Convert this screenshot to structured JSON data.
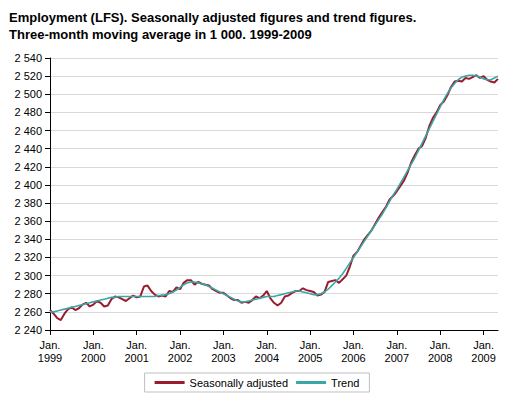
{
  "chart_data": {
    "type": "line",
    "title": "Employment (LFS). Seasonally adjusted figures and trend figures. Three-month moving average in 1 000. 1999-2009",
    "categories": [
      "Jan.\n1999",
      null,
      null,
      null,
      null,
      null,
      null,
      null,
      null,
      null,
      null,
      null,
      "Jan.\n2000",
      null,
      null,
      null,
      null,
      null,
      null,
      null,
      null,
      null,
      null,
      null,
      "Jan.\n2001",
      null,
      null,
      null,
      null,
      null,
      null,
      null,
      null,
      null,
      null,
      null,
      "Jan.\n2002",
      null,
      null,
      null,
      null,
      null,
      null,
      null,
      null,
      null,
      null,
      null,
      "Jan.\n2003",
      null,
      null,
      null,
      null,
      null,
      null,
      null,
      null,
      null,
      null,
      null,
      "Jan.\n2004",
      null,
      null,
      null,
      null,
      null,
      null,
      null,
      null,
      null,
      null,
      null,
      "Jan.\n2005",
      null,
      null,
      null,
      null,
      null,
      null,
      null,
      null,
      null,
      null,
      null,
      "Jan.\n2006",
      null,
      null,
      null,
      null,
      null,
      null,
      null,
      null,
      null,
      null,
      null,
      "Jan.\n2007",
      null,
      null,
      null,
      null,
      null,
      null,
      null,
      null,
      null,
      null,
      null,
      "Jan.\n2008",
      null,
      null,
      null,
      null,
      null,
      null,
      null,
      null,
      null,
      null,
      null,
      "Jan.\n2009",
      null,
      null,
      null,
      null
    ],
    "series": [
      {
        "name": "Seasonally adjusted",
        "color": "#9b1c2e",
        "values": [
          2262,
          2258,
          2253,
          2251,
          2258,
          2263,
          2265,
          2262,
          2264,
          2268,
          2270,
          2266,
          2268,
          2272,
          2270,
          2266,
          2267,
          2274,
          2277,
          2276,
          2274,
          2272,
          2275,
          2278,
          2276,
          2277,
          2288,
          2289,
          2283,
          2279,
          2277,
          2278,
          2277,
          2283,
          2282,
          2287,
          2285,
          2292,
          2295,
          2295,
          2290,
          2293,
          2291,
          2290,
          2289,
          2285,
          2283,
          2281,
          2281,
          2278,
          2275,
          2273,
          2273,
          2270,
          2271,
          2270,
          2273,
          2277,
          2275,
          2278,
          2283,
          2275,
          2270,
          2267,
          2270,
          2277,
          2278,
          2281,
          2283,
          2283,
          2286,
          2284,
          2283,
          2282,
          2278,
          2279,
          2282,
          2293,
          2294,
          2295,
          2292,
          2296,
          2300,
          2310,
          2322,
          2326,
          2333,
          2340,
          2345,
          2350,
          2357,
          2364,
          2370,
          2376,
          2384,
          2388,
          2393,
          2399,
          2405,
          2414,
          2425,
          2433,
          2440,
          2443,
          2452,
          2465,
          2474,
          2480,
          2488,
          2492,
          2499,
          2508,
          2514,
          2515,
          2514,
          2518,
          2517,
          2519,
          2521,
          2518,
          2520,
          2516,
          2514,
          2513,
          2517
        ]
      },
      {
        "name": "Trend",
        "color": "#3aa6a6",
        "values": [
          2260,
          2260,
          2261,
          2262,
          2263,
          2264,
          2265,
          2266,
          2267,
          2268,
          2269,
          2270,
          2271,
          2272,
          2273,
          2274,
          2275,
          2276,
          2276,
          2277,
          2277,
          2277,
          2277,
          2277,
          2277,
          2277,
          2277,
          2277,
          2277,
          2277,
          2278,
          2278,
          2279,
          2280,
          2282,
          2284,
          2287,
          2290,
          2292,
          2293,
          2293,
          2292,
          2291,
          2290,
          2288,
          2286,
          2284,
          2282,
          2280,
          2278,
          2276,
          2274,
          2272,
          2271,
          2271,
          2272,
          2273,
          2274,
          2275,
          2276,
          2277,
          2277,
          2277,
          2278,
          2279,
          2280,
          2281,
          2282,
          2283,
          2283,
          2282,
          2281,
          2280,
          2279,
          2279,
          2280,
          2282,
          2285,
          2289,
          2293,
          2297,
          2302,
          2308,
          2314,
          2320,
          2326,
          2332,
          2338,
          2344,
          2350,
          2356,
          2362,
          2368,
          2375,
          2382,
          2389,
          2395,
          2402,
          2409,
          2416,
          2423,
          2430,
          2438,
          2446,
          2454,
          2462,
          2470,
          2478,
          2486,
          2494,
          2501,
          2507,
          2512,
          2516,
          2519,
          2520,
          2521,
          2521,
          2520,
          2519,
          2517,
          2516,
          2516,
          2518,
          2520
        ]
      }
    ],
    "ylim": [
      2240,
      2540
    ],
    "yticks": [
      {
        "value": 2240,
        "label": "2 240"
      },
      {
        "value": 2260,
        "label": "2 260"
      },
      {
        "value": 2280,
        "label": "2 280"
      },
      {
        "value": 2300,
        "label": "2 300"
      },
      {
        "value": 2320,
        "label": "2 320"
      },
      {
        "value": 2340,
        "label": "2 340"
      },
      {
        "value": 2360,
        "label": "2 360"
      },
      {
        "value": 2380,
        "label": "2 380"
      },
      {
        "value": 2400,
        "label": "2 400"
      },
      {
        "value": 2420,
        "label": "2 420"
      },
      {
        "value": 2440,
        "label": "2 440"
      },
      {
        "value": 2460,
        "label": "2 460"
      },
      {
        "value": 2480,
        "label": "2 480"
      },
      {
        "value": 2500,
        "label": "2 500"
      },
      {
        "value": 2520,
        "label": "2 520"
      },
      {
        "value": 2540,
        "label": "2 540"
      }
    ],
    "grid": true,
    "legend": "bottom"
  }
}
